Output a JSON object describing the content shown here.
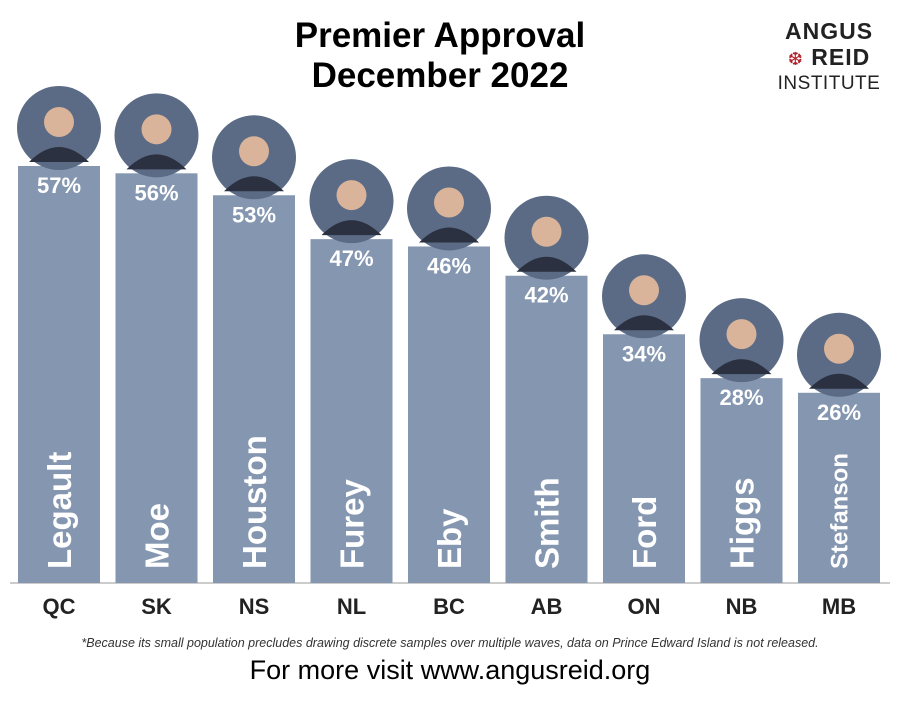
{
  "title_line1": "Premier Approval",
  "title_line2": "December 2022",
  "logo": {
    "line1": "ANGUS",
    "line2": "REID",
    "line3": "INSTITUTE",
    "leaf_icon": "maple-leaf-icon",
    "leaf_color": "#b3202a"
  },
  "footnote": "*Because its small population precludes drawing discrete samples over multiple waves, data on Prince Edward Island is not released.",
  "footer": "For more visit www.angusreid.org",
  "colors": {
    "bar": "#8496b0",
    "text_on_bar": "#ffffff",
    "axis": "#999999"
  },
  "chart_data": {
    "type": "bar",
    "title": "Premier Approval December 2022",
    "categories": [
      "QC",
      "SK",
      "NS",
      "NL",
      "BC",
      "AB",
      "ON",
      "NB",
      "MB"
    ],
    "premiers": [
      "Legault",
      "Moe",
      "Houston",
      "Furey",
      "Eby",
      "Smith",
      "Ford",
      "Higgs",
      "Stefanson"
    ],
    "values": [
      57,
      56,
      53,
      47,
      46,
      42,
      34,
      28,
      26
    ],
    "value_labels": [
      "57%",
      "56%",
      "53%",
      "47%",
      "46%",
      "42%",
      "34%",
      "28%",
      "26%"
    ],
    "ylim": [
      0,
      57
    ],
    "grid": false,
    "legend": "none"
  }
}
